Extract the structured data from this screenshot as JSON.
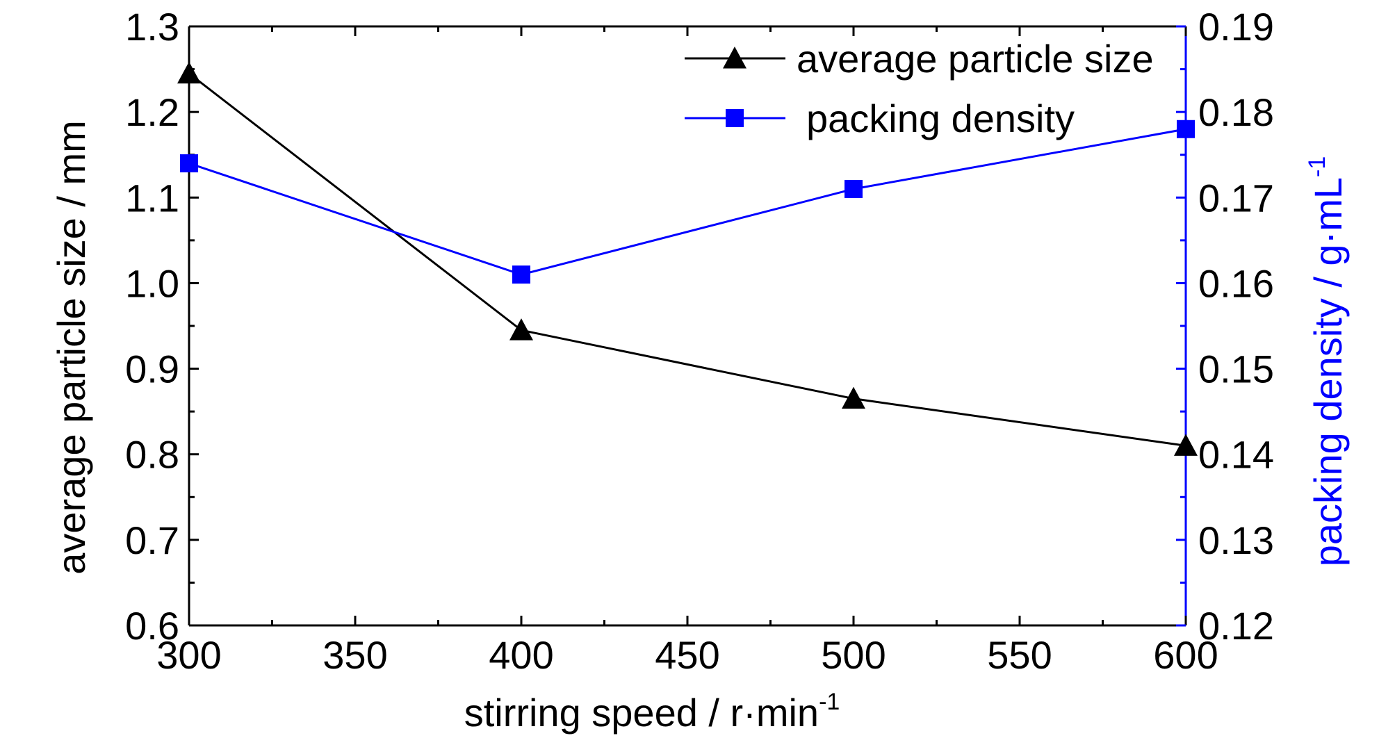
{
  "chart_data": {
    "type": "line",
    "x": [
      300,
      400,
      500,
      600
    ],
    "xlim": [
      300,
      600
    ],
    "x_ticks": [
      "300",
      "350",
      "400",
      "450",
      "500",
      "550",
      "600"
    ],
    "xlabel": "stirring speed / r·min",
    "xlabel_superscript": "-1",
    "y_left": {
      "label": "average particle size / mm",
      "ylim": [
        0.6,
        1.3
      ],
      "ticks": [
        "0.6",
        "0.7",
        "0.8",
        "0.9",
        "1.0",
        "1.1",
        "1.2",
        "1.3"
      ]
    },
    "y_right": {
      "label": "packing density / g·mL",
      "label_superscript": "-1",
      "ylim": [
        0.12,
        0.19
      ],
      "ticks": [
        "0.12",
        "0.13",
        "0.14",
        "0.15",
        "0.16",
        "0.17",
        "0.18",
        "0.19"
      ],
      "color": "#0000ff"
    },
    "series": [
      {
        "name": "average particle size",
        "axis": "left",
        "marker": "triangle",
        "color": "#000000",
        "values": [
          1.245,
          0.945,
          0.865,
          0.81
        ]
      },
      {
        "name": "packing density",
        "axis": "right",
        "marker": "square",
        "color": "#0000ff",
        "values": [
          0.174,
          0.161,
          0.171,
          0.178
        ]
      }
    ],
    "legend": "top-right",
    "grid": false
  }
}
